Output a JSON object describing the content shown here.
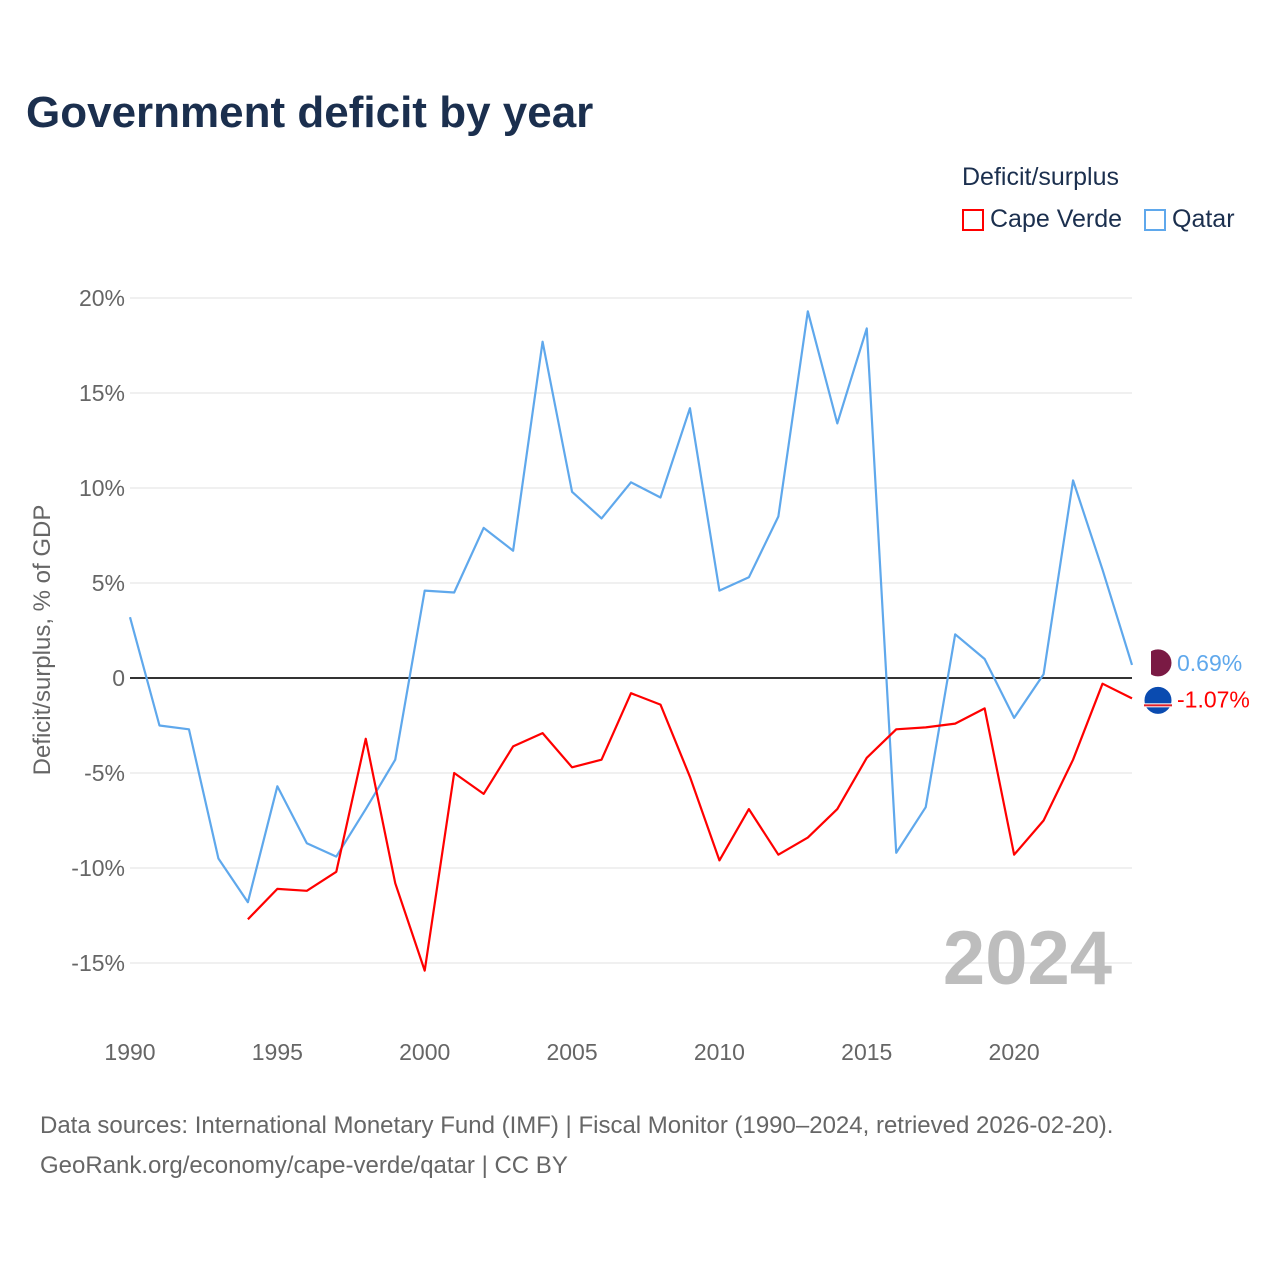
{
  "chart_data": {
    "type": "line",
    "title": "Government deficit by year",
    "ylabel": "Deficit/surplus, % of GDP",
    "xlabel": "",
    "ylim": [
      -18,
      20
    ],
    "xlim": [
      1990,
      2024
    ],
    "yticks": [
      20,
      15,
      10,
      5,
      0,
      -5,
      -10,
      -15
    ],
    "ytick_labels": [
      "20%",
      "15%",
      "10%",
      "5%",
      "0",
      "-5%",
      "-10%",
      "-15%"
    ],
    "xticks": [
      1990,
      1995,
      2000,
      2005,
      2010,
      2015,
      2020
    ],
    "xtick_labels": [
      "1990",
      "1995",
      "2000",
      "2005",
      "2010",
      "2015",
      "2020"
    ],
    "grid": true,
    "legend_title": "Deficit/surplus",
    "legend_placement": "top-right",
    "year_watermark": "2024",
    "series": [
      {
        "name": "Cape Verde",
        "color": "#ff0000",
        "end_label": "-1.07%",
        "x": [
          1994,
          1995,
          1996,
          1997,
          1998,
          1999,
          2000,
          2001,
          2002,
          2003,
          2004,
          2005,
          2006,
          2007,
          2008,
          2009,
          2010,
          2011,
          2012,
          2013,
          2014,
          2015,
          2016,
          2017,
          2018,
          2019,
          2020,
          2021,
          2022,
          2023,
          2024
        ],
        "values": [
          -12.7,
          -11.1,
          -11.2,
          -10.2,
          -3.2,
          -10.8,
          -15.4,
          -5.0,
          -6.1,
          -3.6,
          -2.9,
          -4.7,
          -4.3,
          -0.8,
          -1.4,
          -5.2,
          -9.6,
          -6.9,
          -9.3,
          -8.4,
          -6.9,
          -4.2,
          -2.7,
          -2.6,
          -2.4,
          -1.6,
          -9.3,
          -7.5,
          -4.3,
          -0.3,
          -1.07
        ]
      },
      {
        "name": "Qatar",
        "color": "#5fa8ec",
        "end_label": "0.69%",
        "x": [
          1990,
          1991,
          1992,
          1993,
          1994,
          1995,
          1996,
          1997,
          1998,
          1999,
          2000,
          2001,
          2002,
          2003,
          2004,
          2005,
          2006,
          2007,
          2008,
          2009,
          2010,
          2011,
          2012,
          2013,
          2014,
          2015,
          2016,
          2017,
          2018,
          2019,
          2020,
          2021,
          2022,
          2023,
          2024
        ],
        "values": [
          3.2,
          -2.5,
          -2.7,
          -9.5,
          -11.8,
          -5.7,
          -8.7,
          -9.4,
          -6.9,
          -4.3,
          4.6,
          4.5,
          7.9,
          6.7,
          17.7,
          9.8,
          8.4,
          10.3,
          9.5,
          14.2,
          4.6,
          5.3,
          8.5,
          19.3,
          13.4,
          18.4,
          -9.2,
          -6.8,
          2.3,
          1.0,
          -2.1,
          0.2,
          10.4,
          5.7,
          0.69
        ]
      }
    ]
  },
  "footer": {
    "line1": "Data sources: International Monetary Fund (IMF) | Fiscal Monitor (1990–2024, retrieved 2026-02-20).",
    "line2": "GeoRank.org/economy/cape-verde/qatar | CC BY"
  }
}
